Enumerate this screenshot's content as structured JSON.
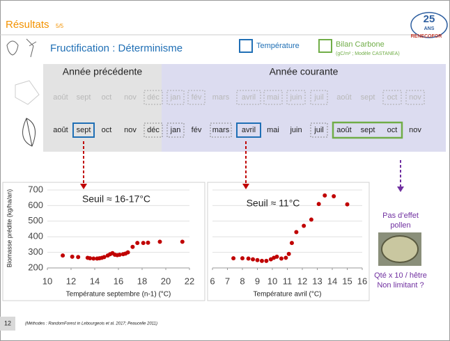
{
  "header": {
    "title": "Résultats",
    "page": "5/5",
    "logo_number": "25",
    "logo_text1": "ANS",
    "logo_text2": "RENECOFOR"
  },
  "subtitle": "Fructification : Déterminisme",
  "legend": {
    "temperature": "Température",
    "carbon": "Bilan Carbone",
    "carbon_note": "(gC/m² ; Modèle CASTANEA)"
  },
  "periods": {
    "previous": "Année précédente",
    "current": "Année courante"
  },
  "months_top": [
    "août",
    "sept",
    "oct",
    "nov",
    "déc",
    "jan",
    "fév",
    "mars",
    "avril",
    "mai",
    "juin",
    "juil",
    "août",
    "sept",
    "oct",
    "nov"
  ],
  "months_bottom": [
    "août",
    "sept",
    "oct",
    "nov",
    "déc",
    "jan",
    "fév",
    "mars",
    "avril",
    "mai",
    "juin",
    "juil",
    "août",
    "sept",
    "oct",
    "nov"
  ],
  "chart_data": [
    {
      "type": "scatter",
      "annotation": "Seuil ≈ 16-17°C",
      "xlabel": "Température septembre (n-1) (°C)",
      "ylabel": "Biomasse prédite (kg/ha/an)",
      "color": "#c00000",
      "grid": true,
      "xlim": [
        10,
        22
      ],
      "xticks": [
        10,
        12,
        14,
        16,
        18,
        20,
        22
      ],
      "ylim": [
        200,
        700
      ],
      "yticks": [
        200,
        300,
        400,
        500,
        600,
        700
      ],
      "x": [
        11.3,
        12.1,
        12.6,
        13.4,
        13.6,
        13.9,
        14.2,
        14.4,
        14.6,
        14.8,
        15.1,
        15.3,
        15.5,
        15.7,
        15.9,
        16.1,
        16.4,
        16.6,
        16.8,
        17.2,
        17.6,
        18.1,
        18.5,
        19.5,
        21.4
      ],
      "y": [
        280,
        272,
        270,
        265,
        262,
        260,
        260,
        262,
        265,
        270,
        280,
        288,
        295,
        285,
        282,
        285,
        288,
        292,
        300,
        335,
        360,
        360,
        362,
        368,
        368
      ]
    },
    {
      "type": "scatter",
      "annotation": "Seuil ≈ 11°C",
      "xlabel": "Température avril (°C)",
      "color": "#c00000",
      "grid": true,
      "xlim": [
        6,
        16
      ],
      "xticks": [
        6,
        7,
        8,
        9,
        10,
        11,
        12,
        13,
        14,
        15,
        16
      ],
      "ylim": [
        200,
        700
      ],
      "yticks": [
        200,
        300,
        400,
        500,
        600,
        700
      ],
      "x": [
        7.4,
        8.0,
        8.4,
        8.7,
        9.0,
        9.3,
        9.6,
        9.9,
        10.1,
        10.3,
        10.6,
        10.9,
        11.1,
        11.3,
        11.6,
        12.1,
        12.6,
        13.1,
        13.5,
        14.1,
        15.0
      ],
      "y": [
        262,
        262,
        260,
        255,
        250,
        245,
        245,
        255,
        265,
        272,
        260,
        265,
        290,
        360,
        430,
        470,
        510,
        610,
        665,
        660,
        608
      ]
    }
  ],
  "notes": {
    "pollen": [
      "Pas d’effet",
      "pollen"
    ],
    "quantity": [
      "Qté x 10 / hêtre",
      "Non limitant ?"
    ]
  },
  "footer": {
    "page_number": "12",
    "reference": "(Méthodes : RandomForest in Lebourgeois et al. 2017; Peaucelle 2011)"
  }
}
